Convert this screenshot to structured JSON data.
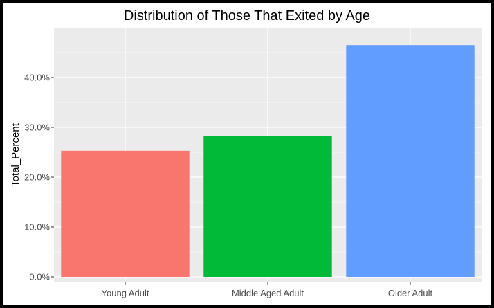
{
  "chart_data": {
    "type": "bar",
    "title": "Distribution of Those That Exited by Age",
    "xlabel": "",
    "ylabel": "Total_Percent",
    "categories": [
      "Young Adult",
      "Middle Aged Adult",
      "Older Adult"
    ],
    "values": [
      25.3,
      28.2,
      46.5
    ],
    "colors": [
      "#F8766D",
      "#00BA38",
      "#619CFF"
    ],
    "ylim": [
      0,
      50
    ],
    "yticks": [
      0,
      10,
      20,
      30,
      40
    ],
    "ytick_labels": [
      "0.0%",
      "10.0%",
      "20.0%",
      "30.0%",
      "40.0%"
    ],
    "grid": true,
    "panel_background": "#EBEBEB",
    "grid_color": "#FFFFFF"
  }
}
